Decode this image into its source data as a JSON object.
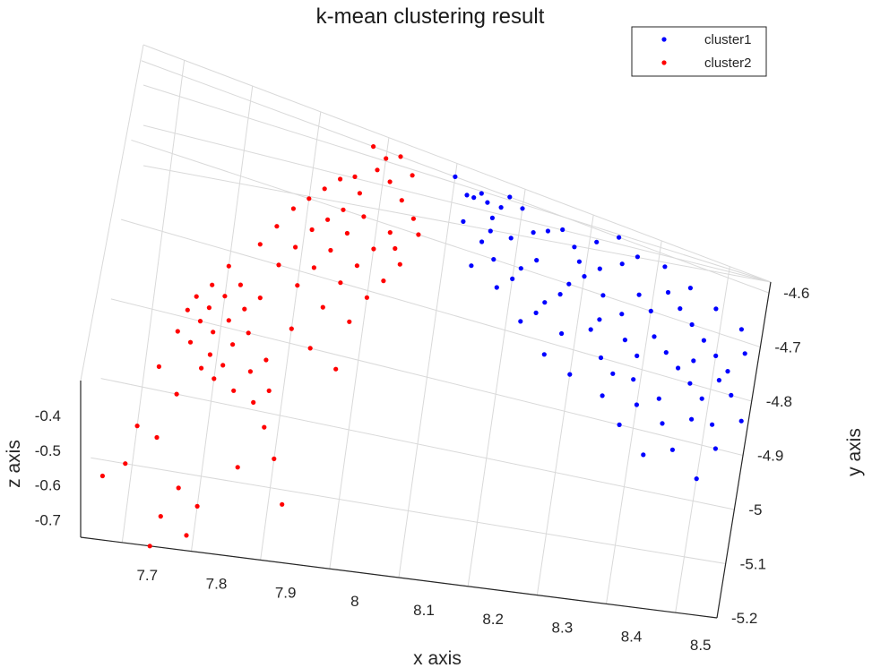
{
  "chart_data": {
    "type": "scatter",
    "title": "k-mean clustering result",
    "xlabel": "x axis",
    "ylabel": "y axis",
    "zlabel": "z axis",
    "x_ticks": [
      "7.7",
      "7.8",
      "7.9",
      "8",
      "8.1",
      "8.2",
      "8.3",
      "8.4",
      "8.5"
    ],
    "y_ticks": [
      "-4.6",
      "-4.7",
      "-4.8",
      "-4.9",
      "-5",
      "-5.1",
      "-5.2"
    ],
    "z_ticks": [
      "-0.4",
      "-0.5",
      "-0.6",
      "-0.7"
    ],
    "xlim": [
      7.64,
      8.56
    ],
    "ylim": [
      -5.2,
      -4.58
    ],
    "zlim": [
      -0.75,
      -0.3
    ],
    "grid": true,
    "legend_position": "top-right",
    "colors": {
      "cluster1": "#0000ff",
      "cluster2": "#ff0000"
    },
    "series": [
      {
        "name": "cluster1",
        "color": "#0000ff",
        "points": [
          [
            8.1,
            -4.6,
            -0.45
          ],
          [
            8.12,
            -4.62,
            -0.45
          ],
          [
            8.14,
            -4.61,
            -0.45
          ],
          [
            8.15,
            -4.62,
            -0.45
          ],
          [
            8.17,
            -4.62,
            -0.45
          ],
          [
            8.13,
            -4.62,
            -0.45
          ],
          [
            8.16,
            -4.64,
            -0.45
          ],
          [
            8.18,
            -4.6,
            -0.45
          ],
          [
            8.2,
            -4.61,
            -0.45
          ],
          [
            8.22,
            -4.64,
            -0.45
          ],
          [
            8.24,
            -4.63,
            -0.45
          ],
          [
            8.26,
            -4.62,
            -0.45
          ],
          [
            8.28,
            -4.64,
            -0.45
          ],
          [
            8.19,
            -4.66,
            -0.45
          ],
          [
            8.23,
            -4.68,
            -0.45
          ],
          [
            8.12,
            -4.66,
            -0.45
          ],
          [
            8.15,
            -4.68,
            -0.45
          ],
          [
            8.17,
            -4.7,
            -0.45
          ],
          [
            8.2,
            -4.72,
            -0.45
          ],
          [
            8.25,
            -4.74,
            -0.45
          ],
          [
            8.28,
            -4.7,
            -0.45
          ],
          [
            8.3,
            -4.68,
            -0.45
          ],
          [
            8.32,
            -4.66,
            -0.45
          ],
          [
            8.35,
            -4.64,
            -0.45
          ],
          [
            8.33,
            -4.7,
            -0.45
          ],
          [
            8.36,
            -4.72,
            -0.45
          ],
          [
            8.38,
            -4.68,
            -0.45
          ],
          [
            8.4,
            -4.7,
            -0.45
          ],
          [
            8.42,
            -4.66,
            -0.45
          ],
          [
            8.44,
            -4.68,
            -0.45
          ],
          [
            8.46,
            -4.7,
            -0.45
          ],
          [
            8.48,
            -4.72,
            -0.45
          ],
          [
            8.5,
            -4.74,
            -0.45
          ],
          [
            8.52,
            -4.76,
            -0.45
          ],
          [
            8.54,
            -4.72,
            -0.45
          ],
          [
            8.37,
            -4.76,
            -0.45
          ],
          [
            8.39,
            -4.78,
            -0.45
          ],
          [
            8.41,
            -4.74,
            -0.45
          ],
          [
            8.43,
            -4.76,
            -0.45
          ],
          [
            8.45,
            -4.78,
            -0.45
          ],
          [
            8.47,
            -4.8,
            -0.45
          ],
          [
            8.49,
            -4.82,
            -0.45
          ],
          [
            8.51,
            -4.78,
            -0.45
          ],
          [
            8.53,
            -4.8,
            -0.45
          ],
          [
            8.55,
            -4.84,
            -0.45
          ],
          [
            8.34,
            -4.8,
            -0.45
          ],
          [
            8.36,
            -4.82,
            -0.45
          ],
          [
            8.4,
            -4.86,
            -0.45
          ],
          [
            8.44,
            -4.88,
            -0.45
          ],
          [
            8.48,
            -4.86,
            -0.45
          ],
          [
            8.52,
            -4.9,
            -0.45
          ],
          [
            8.26,
            -4.82,
            -0.45
          ],
          [
            8.3,
            -4.84,
            -0.45
          ],
          [
            8.22,
            -4.78,
            -0.45
          ],
          [
            8.42,
            -4.94,
            -0.45
          ],
          [
            8.46,
            -4.92,
            -0.45
          ],
          [
            8.5,
            -4.96,
            -0.45
          ],
          [
            8.38,
            -4.9,
            -0.45
          ],
          [
            8.32,
            -4.76,
            -0.45
          ],
          [
            8.27,
            -4.72,
            -0.45
          ],
          [
            8.21,
            -4.7,
            -0.45
          ],
          [
            8.18,
            -4.74,
            -0.45
          ],
          [
            8.14,
            -4.72,
            -0.45
          ],
          [
            8.29,
            -4.66,
            -0.45
          ],
          [
            8.31,
            -4.62,
            -0.45
          ],
          [
            8.34,
            -4.6,
            -0.45
          ],
          [
            8.37,
            -4.62,
            -0.45
          ],
          [
            8.41,
            -4.62,
            -0.45
          ],
          [
            8.45,
            -4.64,
            -0.45
          ],
          [
            8.49,
            -4.66,
            -0.45
          ],
          [
            8.53,
            -4.68,
            -0.45
          ],
          [
            8.43,
            -4.84,
            -0.45
          ],
          [
            8.47,
            -4.76,
            -0.45
          ],
          [
            8.51,
            -4.86,
            -0.45
          ],
          [
            8.35,
            -4.86,
            -0.45
          ],
          [
            8.39,
            -4.82,
            -0.45
          ],
          [
            8.33,
            -4.74,
            -0.45
          ],
          [
            8.24,
            -4.76,
            -0.45
          ],
          [
            8.28,
            -4.78,
            -0.45
          ],
          [
            8.16,
            -4.66,
            -0.45
          ]
        ]
      },
      {
        "name": "cluster2",
        "color": "#ff0000",
        "points": [
          [
            7.98,
            -4.6,
            -0.45
          ],
          [
            8.0,
            -4.61,
            -0.45
          ],
          [
            8.02,
            -4.6,
            -0.45
          ],
          [
            8.04,
            -4.62,
            -0.45
          ],
          [
            7.99,
            -4.63,
            -0.45
          ],
          [
            8.01,
            -4.64,
            -0.45
          ],
          [
            8.03,
            -4.66,
            -0.45
          ],
          [
            7.96,
            -4.65,
            -0.45
          ],
          [
            7.94,
            -4.66,
            -0.45
          ],
          [
            7.97,
            -4.67,
            -0.45
          ],
          [
            8.05,
            -4.68,
            -0.45
          ],
          [
            7.92,
            -4.68,
            -0.45
          ],
          [
            7.95,
            -4.7,
            -0.45
          ],
          [
            7.98,
            -4.7,
            -0.45
          ],
          [
            8.02,
            -4.71,
            -0.45
          ],
          [
            7.9,
            -4.7,
            -0.45
          ],
          [
            7.93,
            -4.72,
            -0.45
          ],
          [
            7.96,
            -4.73,
            -0.45
          ],
          [
            8.0,
            -4.74,
            -0.45
          ],
          [
            8.04,
            -4.75,
            -0.45
          ],
          [
            7.88,
            -4.72,
            -0.45
          ],
          [
            7.91,
            -4.74,
            -0.45
          ],
          [
            7.94,
            -4.76,
            -0.45
          ],
          [
            7.98,
            -4.77,
            -0.45
          ],
          [
            8.02,
            -4.78,
            -0.45
          ],
          [
            7.86,
            -4.75,
            -0.45
          ],
          [
            7.89,
            -4.77,
            -0.45
          ],
          [
            7.92,
            -4.79,
            -0.45
          ],
          [
            7.96,
            -4.8,
            -0.45
          ],
          [
            8.0,
            -4.81,
            -0.45
          ],
          [
            7.84,
            -4.78,
            -0.45
          ],
          [
            7.87,
            -4.8,
            -0.45
          ],
          [
            7.9,
            -4.82,
            -0.45
          ],
          [
            7.94,
            -4.84,
            -0.45
          ],
          [
            7.98,
            -4.85,
            -0.45
          ],
          [
            7.8,
            -4.82,
            -0.45
          ],
          [
            7.82,
            -4.84,
            -0.45
          ],
          [
            7.85,
            -4.85,
            -0.45
          ],
          [
            7.78,
            -4.85,
            -0.45
          ],
          [
            7.8,
            -4.86,
            -0.45
          ],
          [
            7.83,
            -4.87,
            -0.45
          ],
          [
            7.76,
            -4.87,
            -0.45
          ],
          [
            7.78,
            -4.88,
            -0.45
          ],
          [
            7.81,
            -4.89,
            -0.45
          ],
          [
            7.84,
            -4.9,
            -0.45
          ],
          [
            7.75,
            -4.89,
            -0.45
          ],
          [
            7.77,
            -4.9,
            -0.45
          ],
          [
            7.79,
            -4.91,
            -0.45
          ],
          [
            7.82,
            -4.92,
            -0.45
          ],
          [
            7.74,
            -4.92,
            -0.45
          ],
          [
            7.76,
            -4.93,
            -0.45
          ],
          [
            7.79,
            -4.94,
            -0.45
          ],
          [
            7.81,
            -4.95,
            -0.45
          ],
          [
            7.78,
            -4.96,
            -0.45
          ],
          [
            7.8,
            -4.97,
            -0.45
          ],
          [
            7.83,
            -4.98,
            -0.45
          ],
          [
            7.86,
            -4.99,
            -0.45
          ],
          [
            7.72,
            -4.97,
            -0.45
          ],
          [
            7.75,
            -5.0,
            -0.45
          ],
          [
            7.88,
            -5.02,
            -0.45
          ],
          [
            7.7,
            -5.05,
            -0.45
          ],
          [
            7.73,
            -5.06,
            -0.45
          ],
          [
            7.85,
            -5.08,
            -0.45
          ],
          [
            7.9,
            -5.06,
            -0.45
          ],
          [
            7.66,
            -5.12,
            -0.45
          ],
          [
            7.69,
            -5.1,
            -0.45
          ],
          [
            7.77,
            -5.12,
            -0.45
          ],
          [
            7.8,
            -5.14,
            -0.45
          ],
          [
            7.92,
            -5.12,
            -0.45
          ],
          [
            7.75,
            -5.16,
            -0.45
          ],
          [
            7.79,
            -5.18,
            -0.45
          ],
          [
            7.74,
            -5.2,
            -0.45
          ],
          [
            7.87,
            -4.93,
            -0.45
          ],
          [
            7.9,
            -4.88,
            -0.45
          ],
          [
            7.93,
            -4.9,
            -0.45
          ],
          [
            7.97,
            -4.92,
            -0.45
          ],
          [
            7.85,
            -4.95,
            -0.45
          ],
          [
            7.88,
            -4.97,
            -0.45
          ],
          [
            8.06,
            -4.7,
            -0.45
          ],
          [
            8.03,
            -4.73,
            -0.45
          ]
        ]
      }
    ]
  }
}
